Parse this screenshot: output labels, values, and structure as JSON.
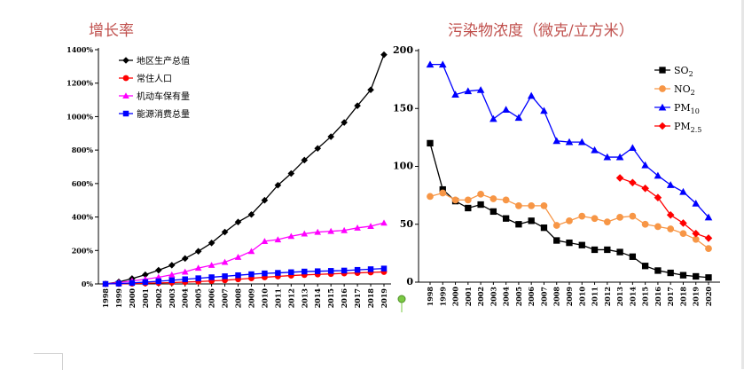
{
  "chart_data": [
    {
      "type": "line",
      "title": "增长率",
      "xlabel": "",
      "ylabel": "",
      "ylim": [
        0,
        1400
      ],
      "yticks": [
        "0%",
        "200%",
        "400%",
        "600%",
        "800%",
        "1000%",
        "1200%",
        "1400%"
      ],
      "x": [
        "1998",
        "1999",
        "2000",
        "2001",
        "2002",
        "2003",
        "2004",
        "2005",
        "2006",
        "2007",
        "2008",
        "2009",
        "2010",
        "2011",
        "2012",
        "2013",
        "2014",
        "2015",
        "2016",
        "2017",
        "2018",
        "2019"
      ],
      "legend_position": "top-left",
      "grid": false,
      "series": [
        {
          "name": "地区生产总值",
          "color": "#000000",
          "marker": "diamond",
          "values": [
            0,
            12,
            32,
            55,
            82,
            112,
            152,
            195,
            245,
            310,
            370,
            415,
            500,
            590,
            660,
            740,
            810,
            880,
            965,
            1065,
            1160,
            1370
          ]
        },
        {
          "name": "常住人口",
          "color": "#ff0000",
          "marker": "circle",
          "values": [
            0,
            1,
            2,
            4,
            6,
            8,
            11,
            14,
            18,
            22,
            28,
            34,
            40,
            45,
            50,
            54,
            57,
            60,
            63,
            66,
            69,
            72
          ]
        },
        {
          "name": "机动车保有量",
          "color": "#ff00ff",
          "marker": "triangle",
          "values": [
            0,
            8,
            18,
            28,
            40,
            55,
            72,
            95,
            112,
            130,
            160,
            195,
            255,
            265,
            285,
            300,
            310,
            315,
            320,
            335,
            345,
            365
          ]
        },
        {
          "name": "能源消费总量",
          "color": "#0000ff",
          "marker": "square",
          "values": [
            0,
            2,
            6,
            11,
            16,
            22,
            28,
            34,
            40,
            46,
            52,
            58,
            63,
            66,
            70,
            74,
            76,
            78,
            80,
            84,
            88,
            92
          ]
        }
      ]
    },
    {
      "type": "line",
      "title": "污染物浓度（微克/立方米）",
      "xlabel": "",
      "ylabel": "",
      "ylim": [
        0,
        200
      ],
      "yticks": [
        "0",
        "50",
        "100",
        "150",
        "200"
      ],
      "x": [
        "1998",
        "1999",
        "2000",
        "2001",
        "2002",
        "2003",
        "2004",
        "2005",
        "2006",
        "2007",
        "2008",
        "2009",
        "2010",
        "2011",
        "2012",
        "2013",
        "2014",
        "2015",
        "2016",
        "2017",
        "2018",
        "2019",
        "2020"
      ],
      "legend_position": "top-right",
      "grid": false,
      "series": [
        {
          "name": "SO2",
          "name_main": "SO",
          "name_sub": "2",
          "color": "#000000",
          "marker": "square",
          "values": [
            120,
            80,
            70,
            64,
            67,
            61,
            55,
            50,
            53,
            47,
            36,
            34,
            32,
            28,
            28,
            26,
            22,
            14,
            10,
            8,
            6,
            5,
            4
          ]
        },
        {
          "name": "NO2",
          "name_main": "NO",
          "name_sub": "2",
          "color": "#f79646",
          "marker": "circle",
          "values": [
            74,
            77,
            71,
            71,
            76,
            72,
            71,
            66,
            66,
            66,
            49,
            53,
            57,
            55,
            52,
            56,
            57,
            50,
            48,
            46,
            42,
            37,
            29
          ]
        },
        {
          "name": "PM10",
          "name_main": "PM",
          "name_sub": "10",
          "color": "#0000ff",
          "marker": "triangle",
          "values": [
            188,
            188,
            162,
            165,
            166,
            141,
            149,
            142,
            161,
            148,
            122,
            121,
            121,
            114,
            108,
            108,
            116,
            101,
            92,
            84,
            78,
            68,
            56
          ]
        },
        {
          "name": "PM2.5",
          "name_main": "PM",
          "name_sub": "2.5",
          "color": "#ff0000",
          "marker": "diamond",
          "values": [
            null,
            null,
            null,
            null,
            null,
            null,
            null,
            null,
            null,
            null,
            null,
            null,
            null,
            null,
            null,
            90,
            86,
            81,
            73,
            58,
            51,
            42,
            38
          ]
        }
      ]
    }
  ]
}
